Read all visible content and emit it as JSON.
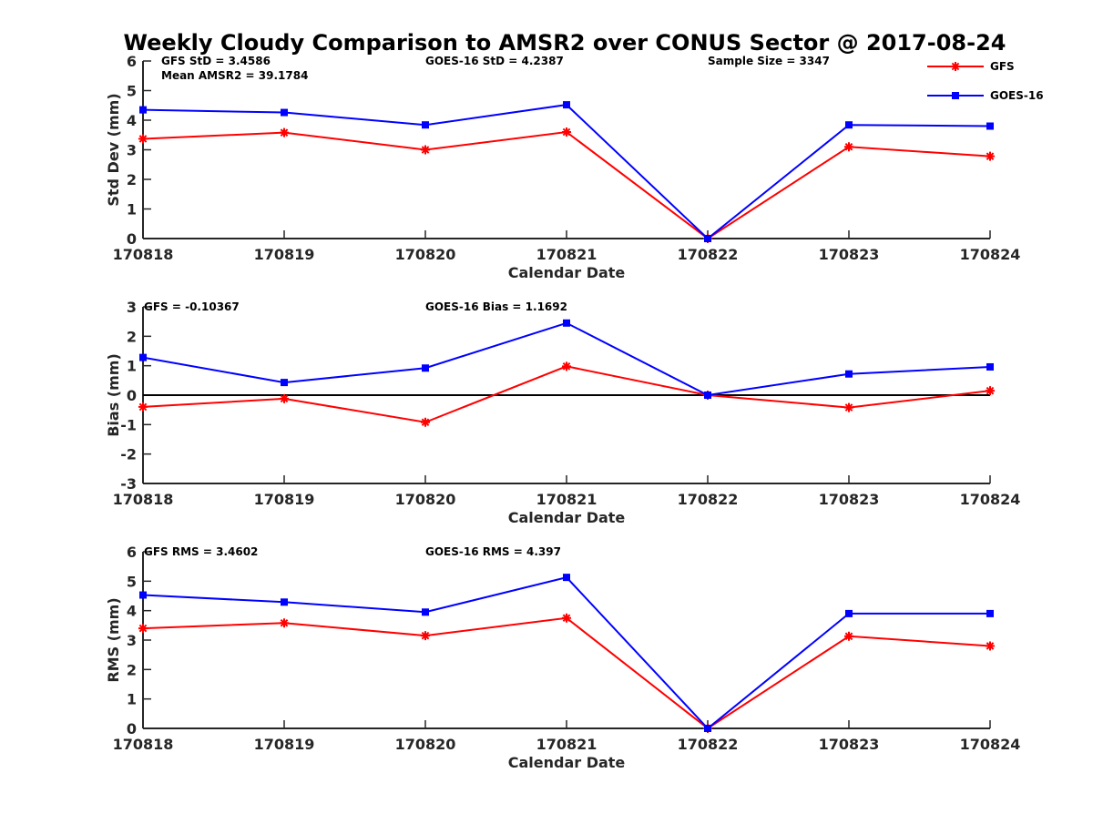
{
  "title": "Weekly Cloudy Comparison to AMSR2 over CONUS Sector @ 2017-08-24",
  "legend": {
    "placement": "top-right",
    "entries": [
      {
        "name": "GFS",
        "color": "#ff0000",
        "marker": "asterisk"
      },
      {
        "name": "GOES-16",
        "color": "#0000ff",
        "marker": "square"
      }
    ]
  },
  "chart_data": [
    {
      "type": "line",
      "ylabel": "Std Dev (mm)",
      "xlabel": "Calendar Date",
      "categories": [
        "170818",
        "170819",
        "170820",
        "170821",
        "170822",
        "170823",
        "170824"
      ],
      "ylim": [
        0,
        6
      ],
      "yticks": [
        "0",
        "1",
        "2",
        "3",
        "4",
        "5",
        "6"
      ],
      "series": [
        {
          "name": "GFS",
          "color": "#ff0000",
          "values": [
            3.37,
            3.58,
            3.0,
            3.6,
            0.0,
            3.1,
            2.78
          ]
        },
        {
          "name": "GOES-16",
          "color": "#0000ff",
          "values": [
            4.35,
            4.26,
            3.84,
            4.52,
            0.0,
            3.84,
            3.8
          ]
        }
      ],
      "annotations": {
        "left": "GFS StD = 3.4586",
        "left2": "Mean AMSR2 = 39.1784",
        "middle": "GOES-16 StD = 4.2387",
        "right": "Sample Size = 3347"
      }
    },
    {
      "type": "line",
      "ylabel": "Bias (mm)",
      "xlabel": "Calendar Date",
      "categories": [
        "170818",
        "170819",
        "170820",
        "170821",
        "170822",
        "170823",
        "170824"
      ],
      "ylim": [
        -3,
        3
      ],
      "yticks": [
        "-3",
        "-2",
        "-1",
        "0",
        "1",
        "2",
        "3"
      ],
      "zero_line": true,
      "series": [
        {
          "name": "GFS",
          "color": "#ff0000",
          "values": [
            -0.4,
            -0.12,
            -0.92,
            0.98,
            0.0,
            -0.42,
            0.15
          ]
        },
        {
          "name": "GOES-16",
          "color": "#0000ff",
          "values": [
            1.28,
            0.43,
            0.92,
            2.45,
            0.0,
            0.72,
            0.96
          ]
        }
      ],
      "annotations": {
        "left": "GFS = -0.10367",
        "middle": "GOES-16 Bias  = 1.1692"
      }
    },
    {
      "type": "line",
      "ylabel": "RMS (mm)",
      "xlabel": "Calendar Date",
      "categories": [
        "170818",
        "170819",
        "170820",
        "170821",
        "170822",
        "170823",
        "170824"
      ],
      "ylim": [
        0,
        6
      ],
      "yticks": [
        "0",
        "1",
        "2",
        "3",
        "4",
        "5",
        "6"
      ],
      "series": [
        {
          "name": "GFS",
          "color": "#ff0000",
          "values": [
            3.4,
            3.58,
            3.15,
            3.75,
            0.0,
            3.13,
            2.8
          ]
        },
        {
          "name": "GOES-16",
          "color": "#0000ff",
          "values": [
            4.53,
            4.29,
            3.95,
            5.13,
            0.0,
            3.9,
            3.9
          ]
        }
      ],
      "annotations": {
        "left": "GFS RMS = 3.4602",
        "middle": "GOES-16 RMS = 4.397"
      }
    }
  ]
}
